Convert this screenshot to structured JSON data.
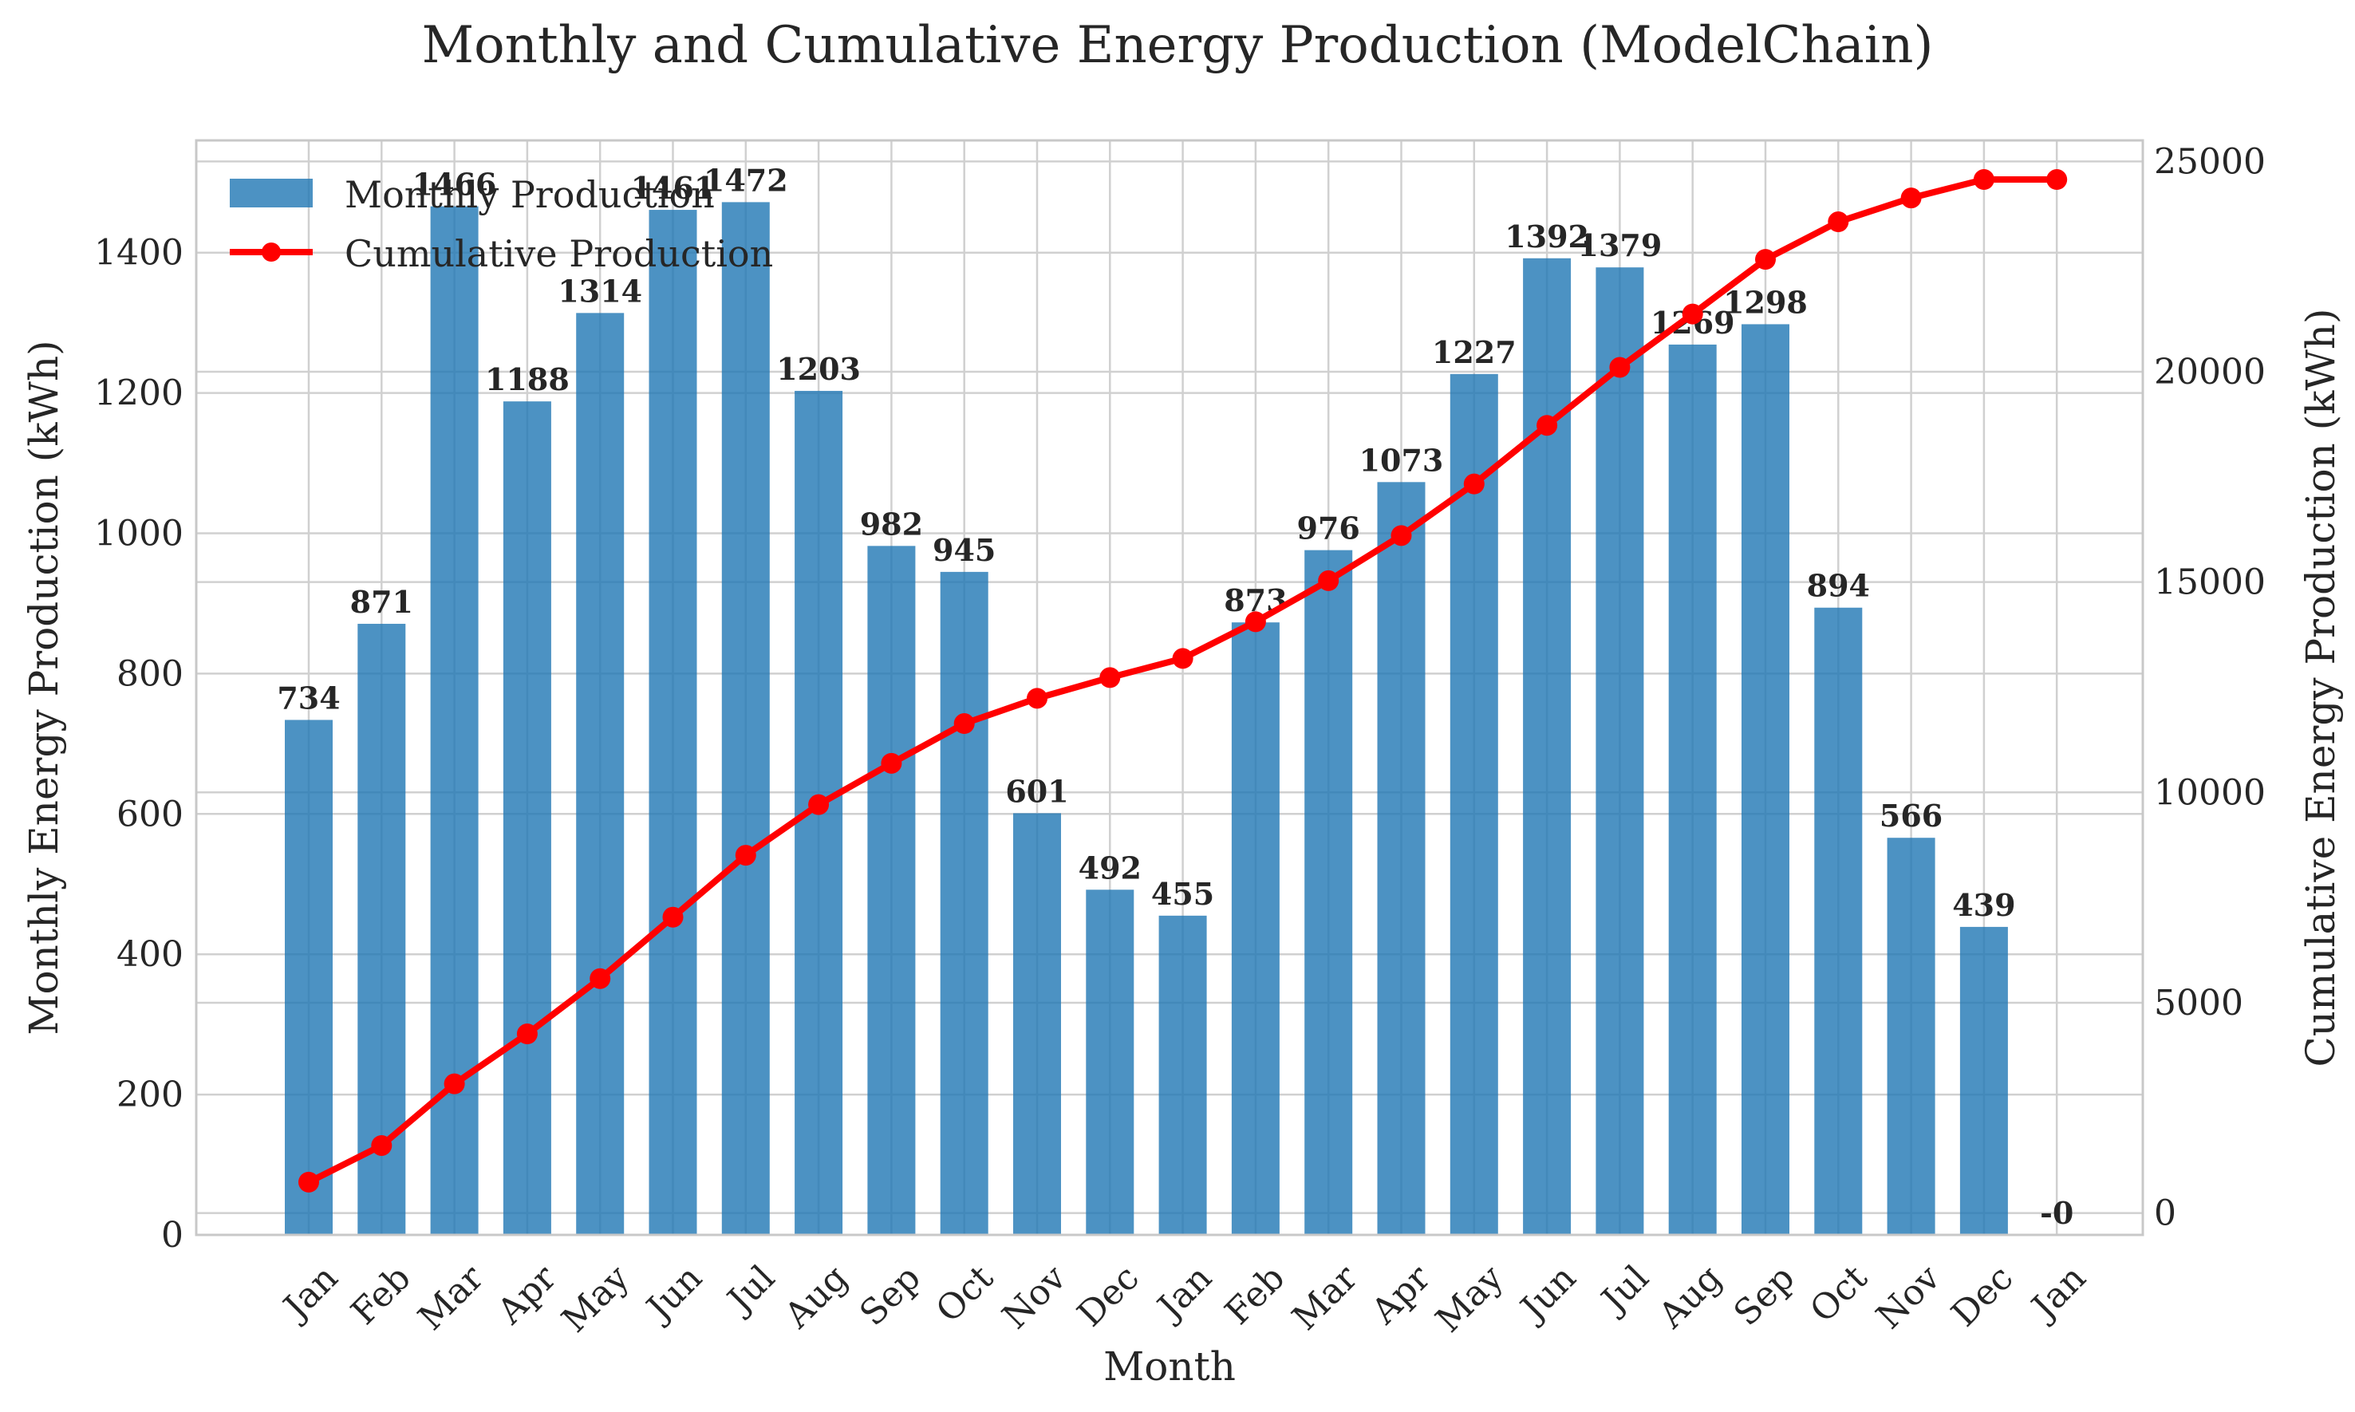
{
  "chart_data": {
    "type": "bar",
    "title": "Monthly and Cumulative Energy Production (ModelChain)",
    "xlabel": "Month",
    "ylabel": "Monthly Energy Production (kWh)",
    "y2label": "Cumulative Energy Production (kWh)",
    "categories": [
      "Jan",
      "Feb",
      "Mar",
      "Apr",
      "May",
      "Jun",
      "Jul",
      "Aug",
      "Sep",
      "Oct",
      "Nov",
      "Dec",
      "Jan",
      "Feb",
      "Mar",
      "Apr",
      "May",
      "Jun",
      "Jul",
      "Aug",
      "Sep",
      "Oct",
      "Nov",
      "Dec",
      "Jan"
    ],
    "bar_labels": [
      "734",
      "871",
      "1466",
      "1188",
      "1314",
      "1461",
      "1472",
      "1203",
      "982",
      "945",
      "601",
      "492",
      "455",
      "873",
      "976",
      "1073",
      "1227",
      "1392",
      "1379",
      "1269",
      "1298",
      "894",
      "566",
      "439",
      "-0"
    ],
    "series": [
      {
        "name": "Monthly Production",
        "type": "bar",
        "axis": "left",
        "color": "#1f77b4",
        "values": [
          734,
          871,
          1466,
          1188,
          1314,
          1461,
          1472,
          1203,
          982,
          945,
          601,
          492,
          455,
          873,
          976,
          1073,
          1227,
          1392,
          1379,
          1269,
          1298,
          894,
          566,
          439,
          0
        ]
      },
      {
        "name": "Cumulative Production",
        "type": "line",
        "axis": "right",
        "color": "#ff0000",
        "values": [
          734,
          1605,
          3071,
          4259,
          5573,
          7034,
          8506,
          9709,
          10691,
          11636,
          12237,
          12729,
          13184,
          14057,
          15033,
          16106,
          17333,
          18725,
          20104,
          21373,
          22671,
          23565,
          24131,
          24570,
          24570
        ]
      }
    ],
    "ylim": [
      0,
      1560
    ],
    "y2lim": [
      -520,
      25500
    ],
    "yticks": [
      "0",
      "200",
      "400",
      "600",
      "800",
      "1000",
      "1200",
      "1400"
    ],
    "y2ticks": [
      "0",
      "5000",
      "10000",
      "15000",
      "20000",
      "25000"
    ],
    "grid": true,
    "legend": "top-left"
  }
}
